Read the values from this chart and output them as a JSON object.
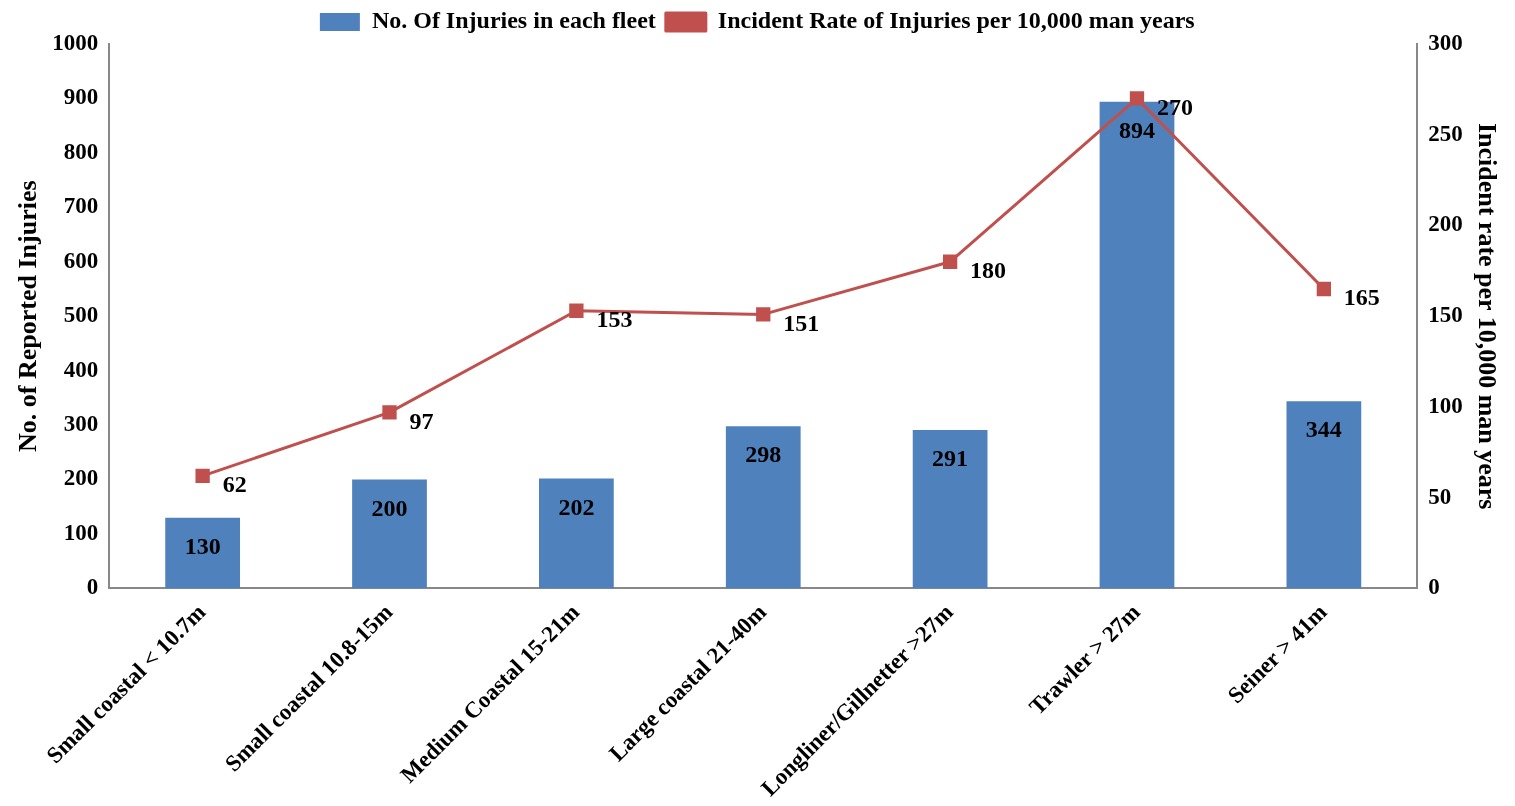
{
  "chart_data": {
    "type": "bar",
    "ylabel": "No. of Reported Injuries",
    "y2label": "Incident rate per 10,000 man years",
    "categories": [
      "Small coastal < 10.7m",
      "Small coastal 10.8-15m",
      "Medium Coastal 15-21m",
      "Large coastal 21-40m",
      "Longliner/Gillnetter >27m",
      "Trawler > 27m",
      "Seiner > 41m"
    ],
    "series": [
      {
        "name": "No. Of Injuries in each fleet",
        "color": "#4f81bd",
        "values": [
          130,
          200,
          202,
          298,
          291,
          894,
          344
        ]
      },
      {
        "name": "Incident Rate of Injuries per 10,000 man years",
        "type": "line",
        "axis": "y2",
        "color": "#c0504d",
        "values": [
          62,
          97,
          153,
          151,
          180,
          270,
          165
        ]
      }
    ],
    "ylim": [
      0,
      1000
    ],
    "yticks": [
      0,
      100,
      200,
      300,
      400,
      500,
      600,
      700,
      800,
      900,
      1000
    ],
    "y2lim": [
      0,
      300
    ],
    "y2ticks": [
      0,
      50,
      100,
      150,
      200,
      250,
      300
    ],
    "data_labels": true,
    "legend": "top",
    "grid": false,
    "marker": "square",
    "line_style": "solid"
  }
}
